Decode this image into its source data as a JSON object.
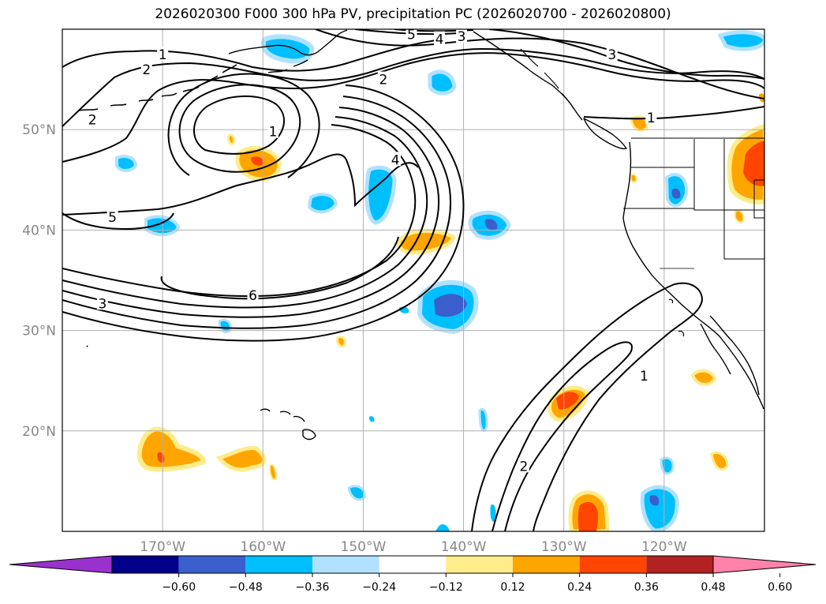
{
  "title": "2026020300 F000 300 hPa PV, precipitation PC (2026020700 - 2026020800)",
  "map": {
    "extent": {
      "lon_min": -180,
      "lon_max": -110,
      "lat_min": 10,
      "lat_max": 60
    },
    "lat_labels": [
      {
        "lat": 50,
        "text": "50°N"
      },
      {
        "lat": 40,
        "text": "40°N"
      },
      {
        "lat": 30,
        "text": "30°N"
      },
      {
        "lat": 20,
        "text": "20°N"
      }
    ],
    "lon_labels": [
      {
        "lon": -170,
        "text": "170°W"
      },
      {
        "lon": -160,
        "text": "160°W"
      },
      {
        "lon": -150,
        "text": "150°W"
      },
      {
        "lon": -140,
        "text": "140°W"
      },
      {
        "lon": -130,
        "text": "130°W"
      },
      {
        "lon": -120,
        "text": "120°W"
      }
    ],
    "contour_labels": [
      {
        "text": "1",
        "lon": -170,
        "lat": 57.5
      },
      {
        "text": "2",
        "lon": -171.6,
        "lat": 56
      },
      {
        "text": "2",
        "lon": -177,
        "lat": 51
      },
      {
        "text": "5",
        "lon": -145.2,
        "lat": 59.5
      },
      {
        "text": "4",
        "lon": -142.4,
        "lat": 59
      },
      {
        "text": "3",
        "lon": -140.2,
        "lat": 59.3
      },
      {
        "text": "3",
        "lon": -125.2,
        "lat": 57.5
      },
      {
        "text": "2",
        "lon": -148,
        "lat": 55
      },
      {
        "text": "1",
        "lon": -159,
        "lat": 49.8
      },
      {
        "text": "4",
        "lon": -146.8,
        "lat": 47
      },
      {
        "text": "1",
        "lon": -121.3,
        "lat": 51.2
      },
      {
        "text": "5",
        "lon": -175,
        "lat": 41.3
      },
      {
        "text": "6",
        "lon": -161,
        "lat": 33.5
      },
      {
        "text": "3",
        "lon": -176,
        "lat": 32.7
      },
      {
        "text": "1",
        "lon": -122,
        "lat": 25.5
      },
      {
        "text": "2",
        "lon": -134,
        "lat": 16.5
      }
    ]
  },
  "colorbar": {
    "ticks": [
      "−0.60",
      "−0.48",
      "−0.36",
      "−0.24",
      "−0.12",
      "0.12",
      "0.24",
      "0.36",
      "0.48",
      "0.60"
    ],
    "colors": [
      "#9932cc",
      "#00008b",
      "#3a5fcd",
      "#00bfff",
      "#b0e2ff",
      "#ffffff",
      "#ffec8b",
      "#ffa500",
      "#ff4500",
      "#b22222",
      "#ff82ab"
    ]
  },
  "colors": {
    "land_outline": "#000000",
    "grid": "#b0b0b0",
    "contour": "#000000"
  }
}
